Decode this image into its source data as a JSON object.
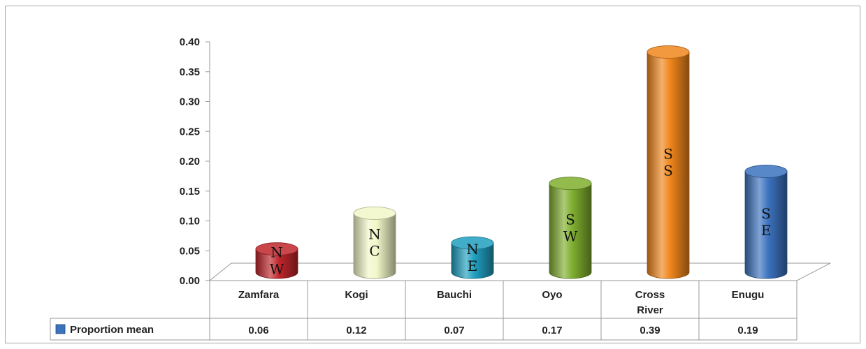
{
  "chart_data": {
    "type": "bar",
    "categories": [
      "Zamfara",
      "Kogi",
      "Bauchi",
      "Oyo",
      "Cross River",
      "Enugu"
    ],
    "category_lines": [
      [
        "Zamfara"
      ],
      [
        "Kogi"
      ],
      [
        "Bauchi"
      ],
      [
        "Oyo"
      ],
      [
        "Cross",
        "River"
      ],
      [
        "Enugu"
      ]
    ],
    "series": [
      {
        "name": "Proportion mean",
        "values": [
          0.06,
          0.12,
          0.07,
          0.17,
          0.39,
          0.19
        ]
      }
    ],
    "value_labels": [
      "0.06",
      "0.12",
      "0.07",
      "0.17",
      "0.39",
      "0.19"
    ],
    "bar_region_labels": [
      [
        "N",
        "W"
      ],
      [
        "N",
        "C"
      ],
      [
        "N",
        "E"
      ],
      [
        "S",
        "W"
      ],
      [
        "S",
        "S"
      ],
      [
        "S",
        "E"
      ]
    ],
    "bar_colors": [
      "#c0262b",
      "#f2f7c8",
      "#1f9fbf",
      "#7fae2e",
      "#f0861c",
      "#3c73bf"
    ],
    "legend_color": "#3c73bf",
    "yticks": [
      "0.00",
      "0.05",
      "0.10",
      "0.15",
      "0.20",
      "0.25",
      "0.30",
      "0.35",
      "0.40"
    ],
    "ylim": [
      0,
      0.4
    ],
    "title": "",
    "xlabel": "",
    "ylabel": "",
    "shape": "cylinder",
    "data_table": true
  }
}
